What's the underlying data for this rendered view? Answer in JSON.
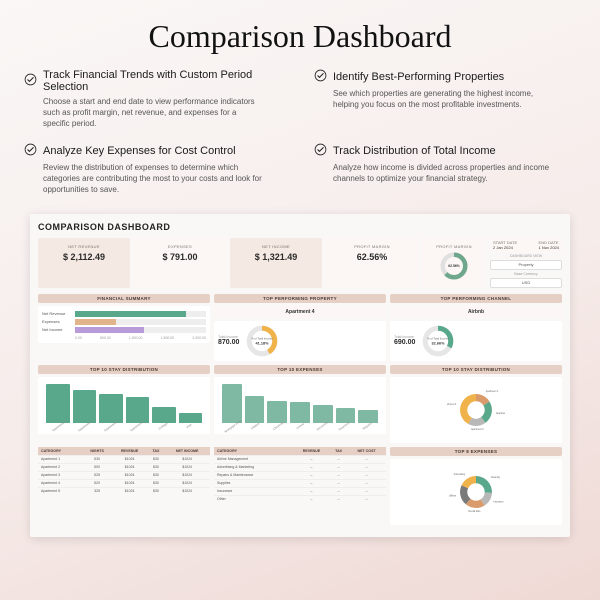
{
  "page_title": "Comparison Dashboard",
  "features": [
    {
      "icon": "check-circle-icon",
      "title": "Track Financial Trends with Custom Period Selection",
      "body": "Choose a start and end date to view performance indicators such as profit margin, net revenue, and expenses for a specific period."
    },
    {
      "icon": "check-circle-icon",
      "title": "Identify Best-Performing Properties",
      "body": "See which properties are generating the highest income, helping you focus on the most profitable investments."
    },
    {
      "icon": "check-circle-icon",
      "title": "Analyze Key Expenses for Cost Control",
      "body": "Review the distribution of expenses to determine which categories are contributing the most to your costs and look for opportunities to save."
    },
    {
      "icon": "check-circle-icon",
      "title": "Track Distribution of Total Income",
      "body": "Analyze how income is divided across properties and income channels to optimize your financial strategy."
    }
  ],
  "dashboard": {
    "title": "COMPARISON DASHBOARD",
    "kpis": {
      "net_revenue_label": "NET REVENUE",
      "net_revenue": "$ 2,112.49",
      "expenses_label": "EXPENSES",
      "expenses": "$ 791.00",
      "net_income_label": "NET INCOME",
      "net_income": "$ 1,321.49",
      "profit_margin_label": "PROFIT MARGIN",
      "profit_margin": "62.56%"
    },
    "gauge": {
      "label": "PROFIT MARGIN",
      "value": "62.56%",
      "pct": 62.56,
      "fill_color": "#6fa78d",
      "track_color": "#e0e0e0"
    },
    "side": {
      "start_date_label": "START DATE",
      "start_date": "2 Jan 2024",
      "end_date_label": "END DATE",
      "end_date": "1 Nov 2024",
      "view_label": "DASHBOARD VIEW",
      "view_value": "Property",
      "currency_label": "Base Currency",
      "currency_value": "USD"
    },
    "fin_summary": {
      "title": "FINANCIAL SUMMARY",
      "rows": [
        {
          "label": "Net Revenue",
          "value": 2112.49,
          "color": "#5aa88b"
        },
        {
          "label": "Expenses",
          "value": 791.0,
          "color": "#e2b48c"
        },
        {
          "label": "Net Income",
          "value": 1321.49,
          "color": "#b89bd9"
        }
      ],
      "xmax": 2500,
      "xticks": [
        "0.00",
        "500.00",
        "1,000.00",
        "1,500.00",
        "2,000.00"
      ]
    },
    "top_property": {
      "title": "TOP PERFORMING PROPERTY",
      "name": "Apartment 4",
      "total_income_label": "Total Income",
      "total_income": "870.00",
      "pct_label": "% of Total Income",
      "pct": "41.18%",
      "pct_num": 41.18,
      "fill_color": "#f0b24a",
      "track_color": "#e6e6e6"
    },
    "top_channel": {
      "title": "TOP PERFORMING CHANNEL",
      "name": "Airbnb",
      "total_income_label": "Total Income",
      "total_income": "690.00",
      "pct_label": "% of Total Income",
      "pct": "32.66%",
      "pct_num": 32.66,
      "fill_color": "#5aa88b",
      "track_color": "#e6e6e6"
    },
    "stay_dist": {
      "title": "TOP 10 STAY DISTRIBUTION",
      "categories": [
        "Apartment 1",
        "Apartment 2",
        "Apartment 3",
        "Apartment 4",
        "Cottage",
        "Villa"
      ],
      "values": [
        1200,
        1000,
        900,
        780,
        500,
        300
      ],
      "ymax": 1200,
      "yticks": [
        "1,200.00",
        "600.00",
        "0.00"
      ],
      "color": "#5aa88b"
    },
    "top_expenses": {
      "title": "TOP 10 EXPENSES",
      "categories": [
        "Mortgage & Int.",
        "Utilities",
        "Cleaning",
        "Linens",
        "Groceries",
        "Insurance",
        "Repairs"
      ],
      "values": [
        90,
        62,
        50,
        48,
        40,
        35,
        30
      ],
      "ymax": 90,
      "yticks": [
        "90.00",
        "45.00",
        "0.00"
      ],
      "color": "#7fb9a3"
    },
    "stay_ring": {
      "title": "TOP 10 STAY DISTRIBUTION",
      "slices": [
        {
          "label": "Apartment 1",
          "pct": 16,
          "color": "#d99a6c"
        },
        {
          "label": "Apartment 2",
          "pct": 24,
          "color": "#5aa88b"
        },
        {
          "label": "Apartment 3",
          "pct": 18,
          "color": "#b8b8b8"
        },
        {
          "label": "Apartment 4",
          "pct": 42,
          "color": "#f0b24a"
        }
      ]
    },
    "table_left": {
      "columns": [
        "CATEGORY",
        "NIGHTS",
        "REVENUE",
        "TAX",
        "NET INCOME"
      ],
      "rows": [
        [
          "Apartment 1",
          "530",
          "$1024",
          "$30",
          "$1024"
        ],
        [
          "Apartment 2",
          "500",
          "$1024",
          "$30",
          "$1024"
        ],
        [
          "Apartment 3",
          "525",
          "$1024",
          "$30",
          "$1024"
        ],
        [
          "Apartment 4",
          "520",
          "$1024",
          "$30",
          "$1024"
        ],
        [
          "Apartment 5",
          "325",
          "$1024",
          "$30",
          "$1024"
        ]
      ]
    },
    "table_mid": {
      "columns": [
        "CATEGORY",
        "REVENUE",
        "TAX",
        "NET COST"
      ],
      "rows": [
        [
          "Airline Management",
          "–",
          "–",
          "–"
        ],
        [
          "Advertising & Marketing",
          "–",
          "–",
          "–"
        ],
        [
          "Repairs & Maintenance",
          "–",
          "–",
          "–"
        ],
        [
          "Supplies",
          "–",
          "–",
          "–"
        ],
        [
          "Insurance",
          "–",
          "–",
          "–"
        ],
        [
          "Other",
          "–",
          "–",
          "–"
        ]
      ]
    },
    "expense_ring": {
      "title": "TOP 8 EXPENSES",
      "slices": [
        {
          "label": "Cleaning",
          "pct": 26,
          "color": "#5aa88b"
        },
        {
          "label": "Insurance",
          "pct": 15,
          "color": "#b8b8b8"
        },
        {
          "label": "Rental Man.",
          "pct": 20,
          "color": "#d99a6c"
        },
        {
          "label": "Utilities",
          "pct": 21,
          "color": "#7a7a7a"
        },
        {
          "label": "Advertising",
          "pct": 18,
          "color": "#f0b24a"
        }
      ]
    },
    "colors": {
      "header_bar": "#e6cfc4",
      "card_pink": "#f5e9e3",
      "card_light": "#fcf7f4",
      "bg": "#faf8f6"
    }
  }
}
